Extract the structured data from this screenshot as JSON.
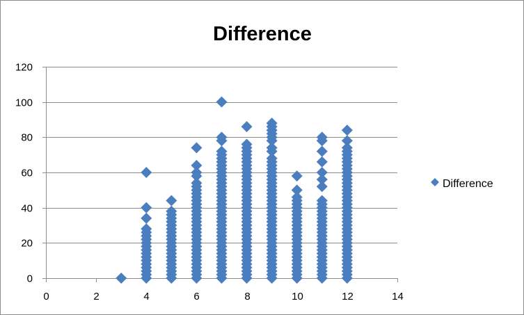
{
  "chart_data": {
    "type": "scatter",
    "title": "Difference",
    "xlabel": "",
    "ylabel": "",
    "xlim": [
      0,
      14
    ],
    "ylim": [
      0,
      120
    ],
    "x_ticks": [
      0,
      2,
      4,
      6,
      8,
      10,
      12,
      14
    ],
    "y_ticks": [
      0,
      20,
      40,
      60,
      80,
      100,
      120
    ],
    "grid": "horizontal",
    "legend_position": "right",
    "marker": "diamond",
    "series": [
      {
        "name": "Difference",
        "color": "#4a7ebf",
        "points": [
          [
            3,
            0
          ],
          [
            4,
            0
          ],
          [
            4,
            2
          ],
          [
            4,
            4
          ],
          [
            4,
            6
          ],
          [
            4,
            8
          ],
          [
            4,
            10
          ],
          [
            4,
            12
          ],
          [
            4,
            14
          ],
          [
            4,
            16
          ],
          [
            4,
            18
          ],
          [
            4,
            20
          ],
          [
            4,
            22
          ],
          [
            4,
            24
          ],
          [
            4,
            26
          ],
          [
            4,
            28
          ],
          [
            4,
            34
          ],
          [
            4,
            40
          ],
          [
            4,
            60
          ],
          [
            5,
            0
          ],
          [
            5,
            2
          ],
          [
            5,
            4
          ],
          [
            5,
            6
          ],
          [
            5,
            8
          ],
          [
            5,
            10
          ],
          [
            5,
            12
          ],
          [
            5,
            14
          ],
          [
            5,
            16
          ],
          [
            5,
            18
          ],
          [
            5,
            20
          ],
          [
            5,
            22
          ],
          [
            5,
            24
          ],
          [
            5,
            26
          ],
          [
            5,
            28
          ],
          [
            5,
            30
          ],
          [
            5,
            32
          ],
          [
            5,
            34
          ],
          [
            5,
            36
          ],
          [
            5,
            38
          ],
          [
            5,
            44
          ],
          [
            6,
            0
          ],
          [
            6,
            2
          ],
          [
            6,
            4
          ],
          [
            6,
            6
          ],
          [
            6,
            8
          ],
          [
            6,
            10
          ],
          [
            6,
            12
          ],
          [
            6,
            14
          ],
          [
            6,
            16
          ],
          [
            6,
            18
          ],
          [
            6,
            20
          ],
          [
            6,
            22
          ],
          [
            6,
            24
          ],
          [
            6,
            26
          ],
          [
            6,
            28
          ],
          [
            6,
            30
          ],
          [
            6,
            32
          ],
          [
            6,
            34
          ],
          [
            6,
            36
          ],
          [
            6,
            38
          ],
          [
            6,
            40
          ],
          [
            6,
            42
          ],
          [
            6,
            44
          ],
          [
            6,
            46
          ],
          [
            6,
            48
          ],
          [
            6,
            50
          ],
          [
            6,
            52
          ],
          [
            6,
            54
          ],
          [
            6,
            58
          ],
          [
            6,
            60
          ],
          [
            6,
            64
          ],
          [
            6,
            74
          ],
          [
            7,
            0
          ],
          [
            7,
            2
          ],
          [
            7,
            4
          ],
          [
            7,
            6
          ],
          [
            7,
            8
          ],
          [
            7,
            10
          ],
          [
            7,
            12
          ],
          [
            7,
            14
          ],
          [
            7,
            16
          ],
          [
            7,
            18
          ],
          [
            7,
            20
          ],
          [
            7,
            22
          ],
          [
            7,
            24
          ],
          [
            7,
            26
          ],
          [
            7,
            28
          ],
          [
            7,
            30
          ],
          [
            7,
            32
          ],
          [
            7,
            34
          ],
          [
            7,
            36
          ],
          [
            7,
            38
          ],
          [
            7,
            40
          ],
          [
            7,
            42
          ],
          [
            7,
            44
          ],
          [
            7,
            46
          ],
          [
            7,
            48
          ],
          [
            7,
            50
          ],
          [
            7,
            52
          ],
          [
            7,
            54
          ],
          [
            7,
            56
          ],
          [
            7,
            58
          ],
          [
            7,
            60
          ],
          [
            7,
            62
          ],
          [
            7,
            64
          ],
          [
            7,
            66
          ],
          [
            7,
            68
          ],
          [
            7,
            70
          ],
          [
            7,
            72
          ],
          [
            7,
            78
          ],
          [
            7,
            80
          ],
          [
            7,
            100
          ],
          [
            8,
            0
          ],
          [
            8,
            2
          ],
          [
            8,
            4
          ],
          [
            8,
            6
          ],
          [
            8,
            8
          ],
          [
            8,
            10
          ],
          [
            8,
            12
          ],
          [
            8,
            14
          ],
          [
            8,
            16
          ],
          [
            8,
            18
          ],
          [
            8,
            20
          ],
          [
            8,
            22
          ],
          [
            8,
            24
          ],
          [
            8,
            26
          ],
          [
            8,
            28
          ],
          [
            8,
            30
          ],
          [
            8,
            32
          ],
          [
            8,
            34
          ],
          [
            8,
            36
          ],
          [
            8,
            38
          ],
          [
            8,
            40
          ],
          [
            8,
            42
          ],
          [
            8,
            44
          ],
          [
            8,
            46
          ],
          [
            8,
            48
          ],
          [
            8,
            50
          ],
          [
            8,
            52
          ],
          [
            8,
            54
          ],
          [
            8,
            56
          ],
          [
            8,
            58
          ],
          [
            8,
            60
          ],
          [
            8,
            62
          ],
          [
            8,
            64
          ],
          [
            8,
            66
          ],
          [
            8,
            68
          ],
          [
            8,
            70
          ],
          [
            8,
            72
          ],
          [
            8,
            74
          ],
          [
            8,
            76
          ],
          [
            8,
            86
          ],
          [
            9,
            0
          ],
          [
            9,
            2
          ],
          [
            9,
            4
          ],
          [
            9,
            6
          ],
          [
            9,
            8
          ],
          [
            9,
            10
          ],
          [
            9,
            12
          ],
          [
            9,
            14
          ],
          [
            9,
            16
          ],
          [
            9,
            18
          ],
          [
            9,
            20
          ],
          [
            9,
            22
          ],
          [
            9,
            24
          ],
          [
            9,
            26
          ],
          [
            9,
            28
          ],
          [
            9,
            30
          ],
          [
            9,
            32
          ],
          [
            9,
            34
          ],
          [
            9,
            36
          ],
          [
            9,
            38
          ],
          [
            9,
            40
          ],
          [
            9,
            42
          ],
          [
            9,
            44
          ],
          [
            9,
            46
          ],
          [
            9,
            48
          ],
          [
            9,
            50
          ],
          [
            9,
            52
          ],
          [
            9,
            54
          ],
          [
            9,
            56
          ],
          [
            9,
            58
          ],
          [
            9,
            60
          ],
          [
            9,
            62
          ],
          [
            9,
            64
          ],
          [
            9,
            66
          ],
          [
            9,
            68
          ],
          [
            9,
            72
          ],
          [
            9,
            74
          ],
          [
            9,
            78
          ],
          [
            9,
            80
          ],
          [
            9,
            82
          ],
          [
            9,
            84
          ],
          [
            9,
            86
          ],
          [
            9,
            88
          ],
          [
            10,
            0
          ],
          [
            10,
            2
          ],
          [
            10,
            4
          ],
          [
            10,
            6
          ],
          [
            10,
            8
          ],
          [
            10,
            10
          ],
          [
            10,
            12
          ],
          [
            10,
            14
          ],
          [
            10,
            16
          ],
          [
            10,
            18
          ],
          [
            10,
            20
          ],
          [
            10,
            22
          ],
          [
            10,
            24
          ],
          [
            10,
            26
          ],
          [
            10,
            28
          ],
          [
            10,
            30
          ],
          [
            10,
            32
          ],
          [
            10,
            34
          ],
          [
            10,
            36
          ],
          [
            10,
            38
          ],
          [
            10,
            40
          ],
          [
            10,
            42
          ],
          [
            10,
            44
          ],
          [
            10,
            46
          ],
          [
            10,
            50
          ],
          [
            10,
            58
          ],
          [
            11,
            0
          ],
          [
            11,
            2
          ],
          [
            11,
            4
          ],
          [
            11,
            6
          ],
          [
            11,
            8
          ],
          [
            11,
            10
          ],
          [
            11,
            12
          ],
          [
            11,
            14
          ],
          [
            11,
            16
          ],
          [
            11,
            18
          ],
          [
            11,
            20
          ],
          [
            11,
            22
          ],
          [
            11,
            24
          ],
          [
            11,
            26
          ],
          [
            11,
            28
          ],
          [
            11,
            30
          ],
          [
            11,
            32
          ],
          [
            11,
            34
          ],
          [
            11,
            36
          ],
          [
            11,
            38
          ],
          [
            11,
            40
          ],
          [
            11,
            42
          ],
          [
            11,
            44
          ],
          [
            11,
            52
          ],
          [
            11,
            56
          ],
          [
            11,
            60
          ],
          [
            11,
            66
          ],
          [
            11,
            72
          ],
          [
            11,
            78
          ],
          [
            11,
            80
          ],
          [
            12,
            0
          ],
          [
            12,
            2
          ],
          [
            12,
            4
          ],
          [
            12,
            6
          ],
          [
            12,
            8
          ],
          [
            12,
            10
          ],
          [
            12,
            12
          ],
          [
            12,
            14
          ],
          [
            12,
            16
          ],
          [
            12,
            18
          ],
          [
            12,
            20
          ],
          [
            12,
            22
          ],
          [
            12,
            24
          ],
          [
            12,
            26
          ],
          [
            12,
            28
          ],
          [
            12,
            30
          ],
          [
            12,
            32
          ],
          [
            12,
            34
          ],
          [
            12,
            36
          ],
          [
            12,
            38
          ],
          [
            12,
            40
          ],
          [
            12,
            42
          ],
          [
            12,
            44
          ],
          [
            12,
            46
          ],
          [
            12,
            48
          ],
          [
            12,
            50
          ],
          [
            12,
            52
          ],
          [
            12,
            54
          ],
          [
            12,
            56
          ],
          [
            12,
            58
          ],
          [
            12,
            60
          ],
          [
            12,
            62
          ],
          [
            12,
            64
          ],
          [
            12,
            66
          ],
          [
            12,
            68
          ],
          [
            12,
            70
          ],
          [
            12,
            72
          ],
          [
            12,
            74
          ],
          [
            12,
            78
          ],
          [
            12,
            84
          ]
        ]
      }
    ]
  }
}
